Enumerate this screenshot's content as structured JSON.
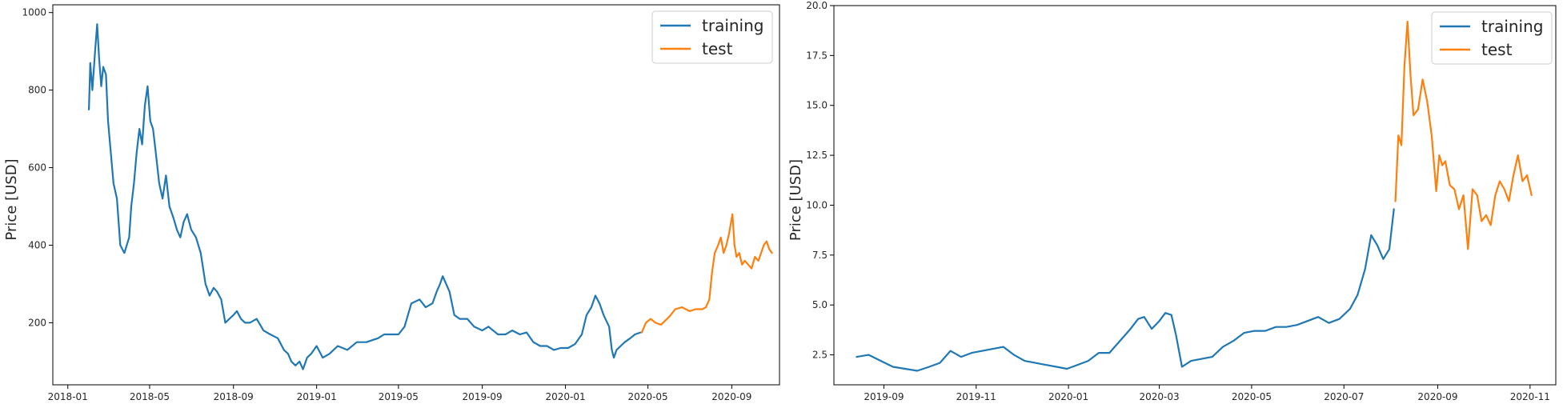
{
  "chart_data": [
    {
      "type": "line",
      "x_type": "date",
      "ylabel": "Price [USD]",
      "xlim": [
        "2017-12-10",
        "2020-11-10"
      ],
      "ylim": [
        40,
        1020
      ],
      "yticks": [
        200,
        400,
        600,
        800,
        1000
      ],
      "ytick_labels": [
        "200",
        "400",
        "600",
        "800",
        "1000"
      ],
      "xticks": [
        "2018-01-01",
        "2018-05-01",
        "2018-09-01",
        "2019-01-01",
        "2019-05-01",
        "2019-09-01",
        "2020-01-01",
        "2020-05-01",
        "2020-09-01"
      ],
      "xtick_labels": [
        "2018-01",
        "2018-05",
        "2018-09",
        "2019-01",
        "2019-05",
        "2019-09",
        "2020-01",
        "2020-05",
        "2020-09"
      ],
      "grid": false,
      "legend_position": "top-right",
      "series": [
        {
          "name": "training",
          "color": "#1f77b4",
          "x": [
            "2018-02-01",
            "2018-02-03",
            "2018-02-06",
            "2018-02-10",
            "2018-02-13",
            "2018-02-16",
            "2018-02-19",
            "2018-02-22",
            "2018-02-26",
            "2018-03-01",
            "2018-03-05",
            "2018-03-09",
            "2018-03-14",
            "2018-03-19",
            "2018-03-25",
            "2018-04-01",
            "2018-04-04",
            "2018-04-08",
            "2018-04-12",
            "2018-04-16",
            "2018-04-20",
            "2018-04-24",
            "2018-04-28",
            "2018-05-02",
            "2018-05-06",
            "2018-05-10",
            "2018-05-15",
            "2018-05-20",
            "2018-05-25",
            "2018-05-30",
            "2018-06-05",
            "2018-06-10",
            "2018-06-15",
            "2018-06-20",
            "2018-06-25",
            "2018-07-01",
            "2018-07-08",
            "2018-07-15",
            "2018-07-22",
            "2018-07-28",
            "2018-08-03",
            "2018-08-08",
            "2018-08-14",
            "2018-08-20",
            "2018-08-26",
            "2018-09-01",
            "2018-09-06",
            "2018-09-12",
            "2018-09-18",
            "2018-09-25",
            "2018-10-05",
            "2018-10-15",
            "2018-10-25",
            "2018-11-05",
            "2018-11-14",
            "2018-11-20",
            "2018-11-25",
            "2018-12-01",
            "2018-12-07",
            "2018-12-12",
            "2018-12-18",
            "2018-12-24",
            "2019-01-01",
            "2019-01-10",
            "2019-01-20",
            "2019-02-01",
            "2019-02-15",
            "2019-03-01",
            "2019-03-15",
            "2019-04-01",
            "2019-04-10",
            "2019-04-20",
            "2019-05-01",
            "2019-05-10",
            "2019-05-20",
            "2019-06-01",
            "2019-06-10",
            "2019-06-20",
            "2019-06-26",
            "2019-07-01",
            "2019-07-05",
            "2019-07-10",
            "2019-07-15",
            "2019-07-22",
            "2019-07-30",
            "2019-08-10",
            "2019-08-20",
            "2019-09-01",
            "2019-09-10",
            "2019-09-24",
            "2019-10-05",
            "2019-10-15",
            "2019-10-26",
            "2019-11-05",
            "2019-11-15",
            "2019-11-25",
            "2019-12-05",
            "2019-12-15",
            "2019-12-25",
            "2020-01-05",
            "2020-01-15",
            "2020-01-25",
            "2020-02-01",
            "2020-02-08",
            "2020-02-14",
            "2020-02-20",
            "2020-02-26",
            "2020-03-05",
            "2020-03-09",
            "2020-03-12",
            "2020-03-16",
            "2020-03-22",
            "2020-03-28",
            "2020-04-05",
            "2020-04-12",
            "2020-04-20"
          ],
          "y": [
            750,
            870,
            800,
            900,
            970,
            880,
            810,
            860,
            840,
            720,
            640,
            560,
            520,
            400,
            380,
            420,
            500,
            560,
            640,
            700,
            660,
            760,
            810,
            720,
            700,
            640,
            560,
            520,
            580,
            500,
            470,
            440,
            420,
            460,
            480,
            440,
            420,
            380,
            300,
            270,
            290,
            280,
            260,
            200,
            210,
            220,
            230,
            210,
            200,
            200,
            210,
            180,
            170,
            160,
            130,
            120,
            100,
            90,
            100,
            80,
            110,
            120,
            140,
            110,
            120,
            140,
            130,
            150,
            150,
            160,
            170,
            170,
            170,
            190,
            250,
            260,
            240,
            250,
            280,
            300,
            320,
            300,
            280,
            220,
            210,
            210,
            190,
            180,
            190,
            170,
            170,
            180,
            170,
            175,
            150,
            140,
            140,
            130,
            135,
            135,
            145,
            170,
            220,
            240,
            270,
            250,
            220,
            190,
            130,
            110,
            130,
            140,
            150,
            160,
            170,
            175
          ]
        },
        {
          "name": "test",
          "color": "#ff7f0e",
          "x": [
            "2020-04-22",
            "2020-04-28",
            "2020-05-05",
            "2020-05-12",
            "2020-05-20",
            "2020-06-01",
            "2020-06-10",
            "2020-06-20",
            "2020-07-01",
            "2020-07-10",
            "2020-07-20",
            "2020-07-25",
            "2020-07-30",
            "2020-08-03",
            "2020-08-07",
            "2020-08-12",
            "2020-08-16",
            "2020-08-20",
            "2020-08-24",
            "2020-08-28",
            "2020-09-02",
            "2020-09-05",
            "2020-09-08",
            "2020-09-12",
            "2020-09-16",
            "2020-09-20",
            "2020-09-25",
            "2020-09-30",
            "2020-10-05",
            "2020-10-10",
            "2020-10-14",
            "2020-10-18",
            "2020-10-22",
            "2020-10-26",
            "2020-10-30"
          ],
          "y": [
            175,
            200,
            210,
            200,
            195,
            215,
            235,
            240,
            230,
            235,
            235,
            240,
            260,
            330,
            380,
            400,
            420,
            380,
            400,
            430,
            480,
            400,
            370,
            380,
            350,
            360,
            350,
            340,
            370,
            360,
            380,
            400,
            410,
            390,
            380
          ]
        }
      ]
    },
    {
      "type": "line",
      "x_type": "date",
      "ylabel": "Price [USD]",
      "xlim": [
        "2019-07-30",
        "2020-11-18"
      ],
      "ylim": [
        1.0,
        20.0
      ],
      "yticks": [
        2.5,
        5.0,
        7.5,
        10.0,
        12.5,
        15.0,
        17.5,
        20.0
      ],
      "ytick_labels": [
        "2.5",
        "5.0",
        "7.5",
        "10.0",
        "12.5",
        "15.0",
        "17.5",
        "20.0"
      ],
      "xticks": [
        "2019-09-01",
        "2019-11-01",
        "2020-01-01",
        "2020-03-01",
        "2020-05-01",
        "2020-07-01",
        "2020-09-01",
        "2020-11-01"
      ],
      "xtick_labels": [
        "2019-09",
        "2019-11",
        "2020-01",
        "2020-03",
        "2020-05",
        "2020-07",
        "2020-09",
        "2020-11"
      ],
      "grid": false,
      "legend_position": "top-right",
      "series": [
        {
          "name": "training",
          "color": "#1f77b4",
          "x": [
            "2019-08-14",
            "2019-08-22",
            "2019-08-30",
            "2019-09-07",
            "2019-09-15",
            "2019-09-23",
            "2019-10-01",
            "2019-10-08",
            "2019-10-15",
            "2019-10-22",
            "2019-10-29",
            "2019-11-05",
            "2019-11-12",
            "2019-11-19",
            "2019-11-26",
            "2019-12-03",
            "2019-12-10",
            "2019-12-17",
            "2019-12-24",
            "2019-12-31",
            "2020-01-07",
            "2020-01-14",
            "2020-01-21",
            "2020-01-28",
            "2020-02-04",
            "2020-02-11",
            "2020-02-16",
            "2020-02-20",
            "2020-02-25",
            "2020-03-01",
            "2020-03-05",
            "2020-03-09",
            "2020-03-12",
            "2020-03-16",
            "2020-03-22",
            "2020-03-29",
            "2020-04-05",
            "2020-04-12",
            "2020-04-19",
            "2020-04-26",
            "2020-05-03",
            "2020-05-10",
            "2020-05-17",
            "2020-05-24",
            "2020-05-31",
            "2020-06-07",
            "2020-06-14",
            "2020-06-21",
            "2020-06-28",
            "2020-07-05",
            "2020-07-10",
            "2020-07-15",
            "2020-07-19",
            "2020-07-23",
            "2020-07-27",
            "2020-07-31",
            "2020-08-03"
          ],
          "y": [
            2.4,
            2.5,
            2.2,
            1.9,
            1.8,
            1.7,
            1.9,
            2.1,
            2.7,
            2.4,
            2.6,
            2.7,
            2.8,
            2.9,
            2.5,
            2.2,
            2.1,
            2.0,
            1.9,
            1.8,
            2.0,
            2.2,
            2.6,
            2.6,
            3.2,
            3.8,
            4.3,
            4.4,
            3.8,
            4.2,
            4.6,
            4.5,
            3.5,
            1.9,
            2.2,
            2.3,
            2.4,
            2.9,
            3.2,
            3.6,
            3.7,
            3.7,
            3.9,
            3.9,
            4.0,
            4.2,
            4.4,
            4.1,
            4.3,
            4.8,
            5.5,
            6.8,
            8.5,
            8.0,
            7.3,
            7.8,
            9.8
          ]
        },
        {
          "name": "test",
          "color": "#ff7f0e",
          "x": [
            "2020-08-04",
            "2020-08-06",
            "2020-08-08",
            "2020-08-10",
            "2020-08-12",
            "2020-08-14",
            "2020-08-16",
            "2020-08-19",
            "2020-08-22",
            "2020-08-25",
            "2020-08-28",
            "2020-08-31",
            "2020-09-02",
            "2020-09-04",
            "2020-09-06",
            "2020-09-09",
            "2020-09-12",
            "2020-09-15",
            "2020-09-18",
            "2020-09-21",
            "2020-09-24",
            "2020-09-27",
            "2020-09-30",
            "2020-10-03",
            "2020-10-06",
            "2020-10-09",
            "2020-10-12",
            "2020-10-15",
            "2020-10-18",
            "2020-10-21",
            "2020-10-24",
            "2020-10-27",
            "2020-10-30",
            "2020-11-02"
          ],
          "y": [
            10.2,
            13.5,
            13.0,
            17.0,
            19.2,
            16.5,
            14.5,
            14.8,
            16.3,
            15.2,
            13.5,
            10.7,
            12.5,
            12.0,
            12.2,
            11.0,
            10.8,
            9.8,
            10.5,
            7.8,
            10.8,
            10.5,
            9.2,
            9.5,
            9.0,
            10.5,
            11.2,
            10.8,
            10.2,
            11.5,
            12.5,
            11.2,
            11.5,
            10.5
          ]
        }
      ]
    }
  ]
}
